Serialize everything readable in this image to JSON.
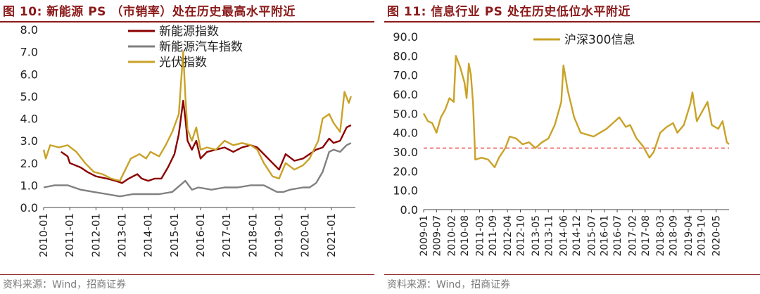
{
  "left": {
    "title": "图 10:  新能源 PS （市销率）处在历史最高水平附近",
    "source": "资料来源：Wind，招商证券"
  },
  "right": {
    "title": "图 11:  信息行业 PS 处在历史低位水平附近",
    "source": "资料来源：Wind，招商证券"
  },
  "chart_data": [
    {
      "type": "line",
      "x_ticks": [
        "2010-01",
        "2011-01",
        "2012-01",
        "2013-01",
        "2014-01",
        "2015-01",
        "2016-01",
        "2017-01",
        "2018-01",
        "2019-01",
        "2020-01",
        "2021-01"
      ],
      "y_ticks": [
        "0.0",
        "1.0",
        "2.0",
        "3.0",
        "4.0",
        "5.0",
        "6.0",
        "7.0",
        "8.0"
      ],
      "ylim": [
        0,
        8
      ],
      "xlim": [
        "2010-01",
        "2021-12"
      ],
      "legend_position": "top-center",
      "series": [
        {
          "name": "新能源指数",
          "color": "#8b0000",
          "points": [
            [
              "2010-09",
              2.5
            ],
            [
              "2010-12",
              2.3
            ],
            [
              "2011-01",
              2.0
            ],
            [
              "2011-06",
              1.8
            ],
            [
              "2011-09",
              1.6
            ],
            [
              "2012-01",
              1.4
            ],
            [
              "2012-06",
              1.3
            ],
            [
              "2012-10",
              1.2
            ],
            [
              "2013-01",
              1.1
            ],
            [
              "2013-04",
              1.3
            ],
            [
              "2013-08",
              1.5
            ],
            [
              "2013-10",
              1.3
            ],
            [
              "2014-01",
              1.2
            ],
            [
              "2014-04",
              1.3
            ],
            [
              "2014-07",
              1.3
            ],
            [
              "2014-10",
              1.8
            ],
            [
              "2015-01",
              2.4
            ],
            [
              "2015-03",
              3.3
            ],
            [
              "2015-05",
              4.8
            ],
            [
              "2015-06",
              4.0
            ],
            [
              "2015-07",
              3.0
            ],
            [
              "2015-09",
              2.6
            ],
            [
              "2015-11",
              3.0
            ],
            [
              "2016-01",
              2.2
            ],
            [
              "2016-04",
              2.5
            ],
            [
              "2016-08",
              2.6
            ],
            [
              "2016-12",
              2.7
            ],
            [
              "2017-04",
              2.5
            ],
            [
              "2017-08",
              2.7
            ],
            [
              "2017-12",
              2.8
            ],
            [
              "2018-03",
              2.7
            ],
            [
              "2018-06",
              2.4
            ],
            [
              "2018-10",
              2.0
            ],
            [
              "2019-01",
              1.7
            ],
            [
              "2019-04",
              2.4
            ],
            [
              "2019-08",
              2.1
            ],
            [
              "2019-12",
              2.2
            ],
            [
              "2020-03",
              2.4
            ],
            [
              "2020-06",
              2.6
            ],
            [
              "2020-09",
              2.7
            ],
            [
              "2020-12",
              3.1
            ],
            [
              "2021-02",
              2.9
            ],
            [
              "2021-05",
              3.0
            ],
            [
              "2021-08",
              3.6
            ],
            [
              "2021-10",
              3.7
            ]
          ]
        },
        {
          "name": "新能源汽车指数",
          "color": "#808080",
          "points": [
            [
              "2010-01",
              0.9
            ],
            [
              "2010-06",
              1.0
            ],
            [
              "2010-12",
              1.0
            ],
            [
              "2011-06",
              0.8
            ],
            [
              "2011-12",
              0.7
            ],
            [
              "2012-06",
              0.6
            ],
            [
              "2012-12",
              0.5
            ],
            [
              "2013-06",
              0.6
            ],
            [
              "2013-12",
              0.6
            ],
            [
              "2014-06",
              0.6
            ],
            [
              "2014-12",
              0.7
            ],
            [
              "2015-06",
              1.2
            ],
            [
              "2015-09",
              0.8
            ],
            [
              "2015-12",
              0.9
            ],
            [
              "2016-06",
              0.8
            ],
            [
              "2016-12",
              0.9
            ],
            [
              "2017-06",
              0.9
            ],
            [
              "2017-12",
              1.0
            ],
            [
              "2018-06",
              1.0
            ],
            [
              "2018-12",
              0.7
            ],
            [
              "2019-03",
              0.7
            ],
            [
              "2019-06",
              0.8
            ],
            [
              "2019-12",
              0.9
            ],
            [
              "2020-03",
              0.9
            ],
            [
              "2020-06",
              1.1
            ],
            [
              "2020-09",
              1.6
            ],
            [
              "2020-12",
              2.5
            ],
            [
              "2021-02",
              2.6
            ],
            [
              "2021-05",
              2.5
            ],
            [
              "2021-08",
              2.8
            ],
            [
              "2021-10",
              2.9
            ]
          ]
        },
        {
          "name": "光伏指数",
          "color": "#c9a227",
          "points": [
            [
              "2010-01",
              2.6
            ],
            [
              "2010-02",
              2.2
            ],
            [
              "2010-04",
              2.8
            ],
            [
              "2010-08",
              2.7
            ],
            [
              "2010-12",
              2.8
            ],
            [
              "2011-04",
              2.5
            ],
            [
              "2011-08",
              2.0
            ],
            [
              "2011-12",
              1.6
            ],
            [
              "2012-04",
              1.5
            ],
            [
              "2012-08",
              1.3
            ],
            [
              "2012-12",
              1.2
            ],
            [
              "2013-01",
              1.4
            ],
            [
              "2013-05",
              2.2
            ],
            [
              "2013-09",
              2.4
            ],
            [
              "2013-12",
              2.2
            ],
            [
              "2014-02",
              2.5
            ],
            [
              "2014-06",
              2.3
            ],
            [
              "2014-09",
              2.8
            ],
            [
              "2014-12",
              3.4
            ],
            [
              "2015-03",
              4.2
            ],
            [
              "2015-05",
              7.0
            ],
            [
              "2015-06",
              5.0
            ],
            [
              "2015-07",
              3.5
            ],
            [
              "2015-09",
              3.0
            ],
            [
              "2015-11",
              3.6
            ],
            [
              "2016-01",
              2.6
            ],
            [
              "2016-04",
              2.7
            ],
            [
              "2016-08",
              2.6
            ],
            [
              "2016-12",
              3.0
            ],
            [
              "2017-04",
              2.8
            ],
            [
              "2017-08",
              2.9
            ],
            [
              "2017-12",
              2.8
            ],
            [
              "2018-03",
              2.6
            ],
            [
              "2018-06",
              2.0
            ],
            [
              "2018-10",
              1.4
            ],
            [
              "2019-01",
              1.3
            ],
            [
              "2019-04",
              2.0
            ],
            [
              "2019-08",
              1.7
            ],
            [
              "2019-12",
              1.9
            ],
            [
              "2020-03",
              2.2
            ],
            [
              "2020-07",
              3.0
            ],
            [
              "2020-09",
              4.0
            ],
            [
              "2020-12",
              4.2
            ],
            [
              "2021-02",
              3.8
            ],
            [
              "2021-05",
              3.4
            ],
            [
              "2021-07",
              5.2
            ],
            [
              "2021-09",
              4.7
            ],
            [
              "2021-10",
              5.0
            ]
          ]
        }
      ]
    },
    {
      "type": "line",
      "x_ticks": [
        "2009-01",
        "2009-07",
        "2010-02",
        "2010-08",
        "2011-03",
        "2011-09",
        "2012-04",
        "2012-10",
        "2013-05",
        "2013-11",
        "2014-06",
        "2014-12",
        "2015-07",
        "2016-01",
        "2016-07",
        "2017-02",
        "2017-08",
        "2018-03",
        "2018-09",
        "2019-04",
        "2019-10",
        "2020-05"
      ],
      "y_ticks": [
        "0.0",
        "10.0",
        "20.0",
        "30.0",
        "40.0",
        "50.0",
        "60.0",
        "70.0",
        "80.0",
        "90.0"
      ],
      "ylim": [
        0,
        90
      ],
      "xlim": [
        "2009-01",
        "2020-11"
      ],
      "legend_position": "top-center",
      "reference_line": {
        "value": 32,
        "color": "#e41a1c",
        "style": "dashed"
      },
      "series": [
        {
          "name": "沪深300信息",
          "color": "#c9a227",
          "points": [
            [
              "2009-01",
              50
            ],
            [
              "2009-03",
              46
            ],
            [
              "2009-05",
              45
            ],
            [
              "2009-07",
              40
            ],
            [
              "2009-09",
              48
            ],
            [
              "2009-11",
              52
            ],
            [
              "2010-01",
              58
            ],
            [
              "2010-03",
              56
            ],
            [
              "2010-04",
              80
            ],
            [
              "2010-06",
              74
            ],
            [
              "2010-08",
              66
            ],
            [
              "2010-09",
              58
            ],
            [
              "2010-10",
              76
            ],
            [
              "2010-11",
              70
            ],
            [
              "2010-12",
              55
            ],
            [
              "2011-01",
              26
            ],
            [
              "2011-04",
              27
            ],
            [
              "2011-07",
              26
            ],
            [
              "2011-10",
              22
            ],
            [
              "2011-12",
              27
            ],
            [
              "2012-03",
              32
            ],
            [
              "2012-05",
              38
            ],
            [
              "2012-08",
              37
            ],
            [
              "2012-11",
              34
            ],
            [
              "2013-02",
              35
            ],
            [
              "2013-05",
              32
            ],
            [
              "2013-08",
              35
            ],
            [
              "2013-11",
              37
            ],
            [
              "2014-02",
              44
            ],
            [
              "2014-05",
              56
            ],
            [
              "2014-06",
              75
            ],
            [
              "2014-08",
              62
            ],
            [
              "2014-11",
              48
            ],
            [
              "2015-02",
              40
            ],
            [
              "2015-05",
              39
            ],
            [
              "2015-08",
              38
            ],
            [
              "2015-11",
              40
            ],
            [
              "2016-02",
              42
            ],
            [
              "2016-05",
              45
            ],
            [
              "2016-08",
              48
            ],
            [
              "2016-11",
              43
            ],
            [
              "2017-01",
              44
            ],
            [
              "2017-04",
              37
            ],
            [
              "2017-07",
              33
            ],
            [
              "2017-10",
              27
            ],
            [
              "2017-12",
              30
            ],
            [
              "2018-03",
              40
            ],
            [
              "2018-06",
              43
            ],
            [
              "2018-09",
              45
            ],
            [
              "2018-11",
              40
            ],
            [
              "2019-02",
              44
            ],
            [
              "2019-05",
              55
            ],
            [
              "2019-06",
              61
            ],
            [
              "2019-08",
              46
            ],
            [
              "2019-10",
              50
            ],
            [
              "2020-01",
              56
            ],
            [
              "2020-03",
              44
            ],
            [
              "2020-06",
              42
            ],
            [
              "2020-08",
              46
            ],
            [
              "2020-10",
              35
            ],
            [
              "2020-11",
              34
            ]
          ]
        }
      ]
    }
  ]
}
